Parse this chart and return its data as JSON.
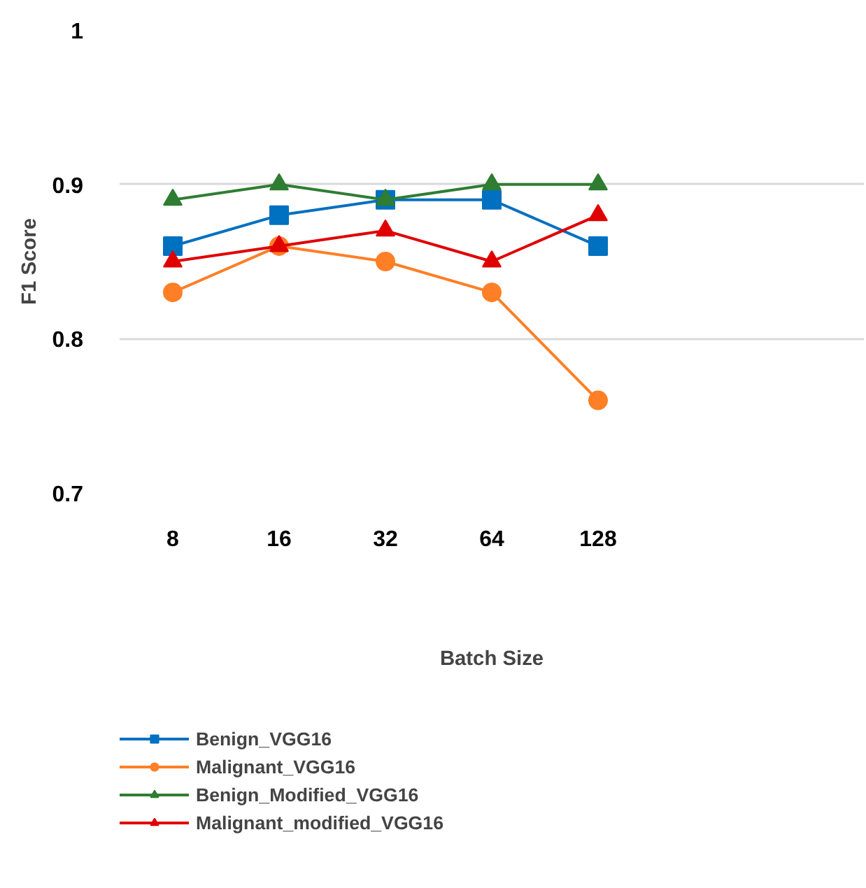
{
  "chart_data": {
    "type": "line",
    "xlabel": "Batch Size",
    "ylabel": "F1 Score",
    "categories": [
      "8",
      "16",
      "32",
      "64",
      "128",
      null,
      null
    ],
    "ylim": [
      0.7,
      1
    ],
    "yticks": [
      0.7,
      0.8,
      0.9,
      1
    ],
    "grid": "y",
    "legend": "bottom",
    "line_style": "solid",
    "series": [
      {
        "name": "Benign_VGG16",
        "color": "#0070c0",
        "marker": "square",
        "values": [
          0.86,
          0.88,
          0.89,
          0.89,
          0.86,
          null,
          null
        ]
      },
      {
        "name": "Malignant_VGG16",
        "color": "#ff7f27",
        "marker": "circle",
        "values": [
          0.83,
          0.86,
          0.85,
          0.83,
          0.76,
          null,
          null
        ]
      },
      {
        "name": "Benign_Modified_VGG16",
        "color": "#2e7d32",
        "marker": "triangle",
        "values": [
          0.89,
          0.9,
          0.89,
          0.9,
          0.9,
          null,
          null
        ]
      },
      {
        "name": "Malignant_modified_VGG16",
        "color": "#e00000",
        "marker": "triangle",
        "values": [
          0.85,
          0.86,
          0.87,
          0.85,
          0.88,
          null,
          null
        ]
      }
    ]
  }
}
